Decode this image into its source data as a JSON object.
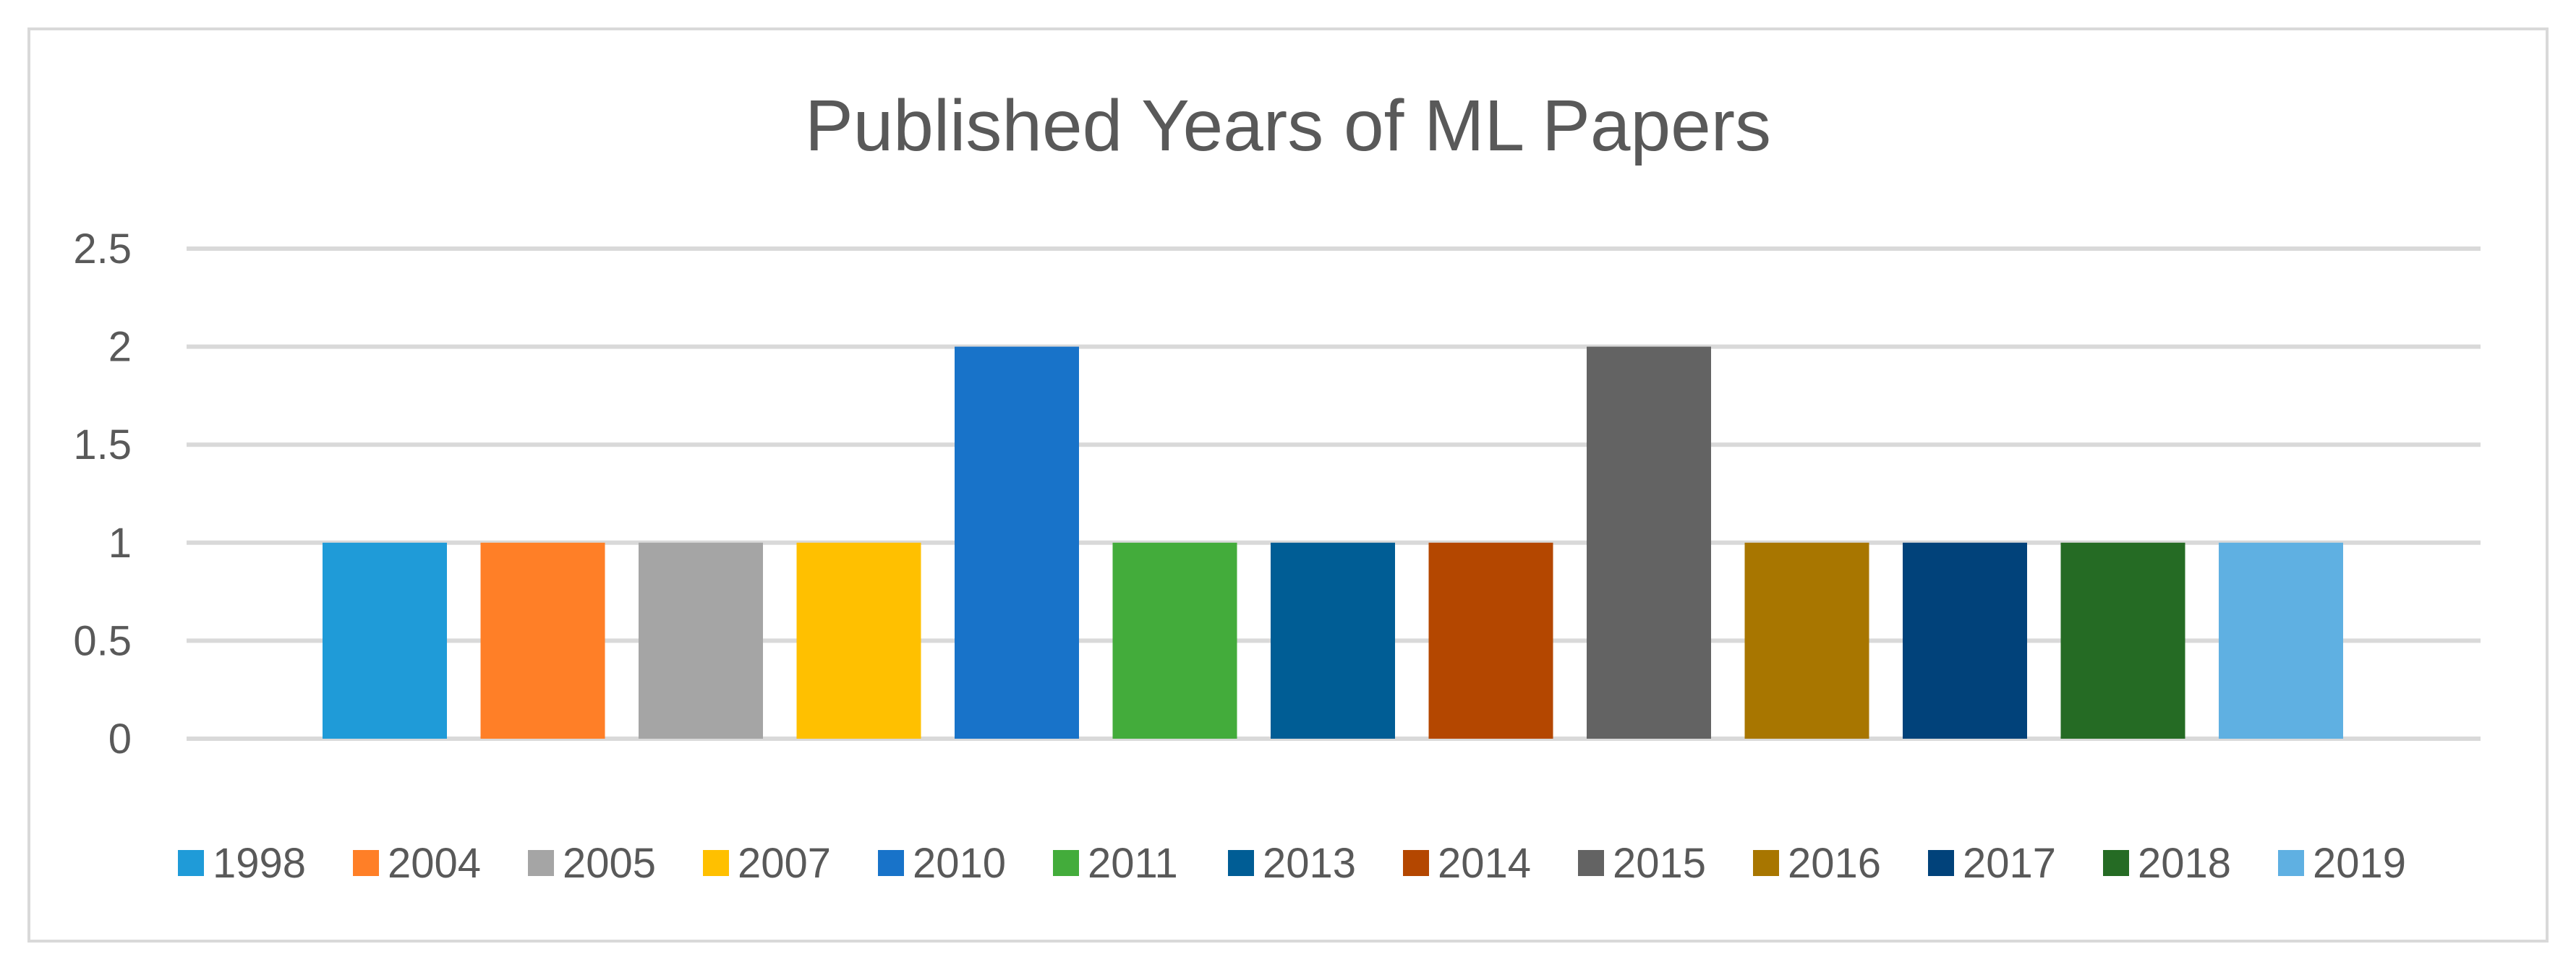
{
  "chart_data": {
    "type": "bar",
    "title": "Published Years of ML Papers",
    "xlabel": "",
    "ylabel": "",
    "ylim": [
      0,
      2.5
    ],
    "yticks": [
      "0",
      "0.5",
      "1",
      "1.5",
      "2",
      "2.5"
    ],
    "grid": true,
    "legend_position": "bottom",
    "series": [
      {
        "name": "1998",
        "value": 1,
        "color": "#1f9bd8"
      },
      {
        "name": "2004",
        "value": 1,
        "color": "#ff7f27"
      },
      {
        "name": "2005",
        "value": 1,
        "color": "#a5a5a5"
      },
      {
        "name": "2007",
        "value": 1,
        "color": "#ffc000"
      },
      {
        "name": "2010",
        "value": 2,
        "color": "#1873c9"
      },
      {
        "name": "2011",
        "value": 1,
        "color": "#43ac3b"
      },
      {
        "name": "2013",
        "value": 1,
        "color": "#005d95"
      },
      {
        "name": "2014",
        "value": 1,
        "color": "#b44700"
      },
      {
        "name": "2015",
        "value": 2,
        "color": "#636363"
      },
      {
        "name": "2016",
        "value": 1,
        "color": "#a87600"
      },
      {
        "name": "2017",
        "value": 1,
        "color": "#01427a"
      },
      {
        "name": "2018",
        "value": 1,
        "color": "#256b24"
      },
      {
        "name": "2019",
        "value": 1,
        "color": "#5fb0e2"
      }
    ]
  }
}
